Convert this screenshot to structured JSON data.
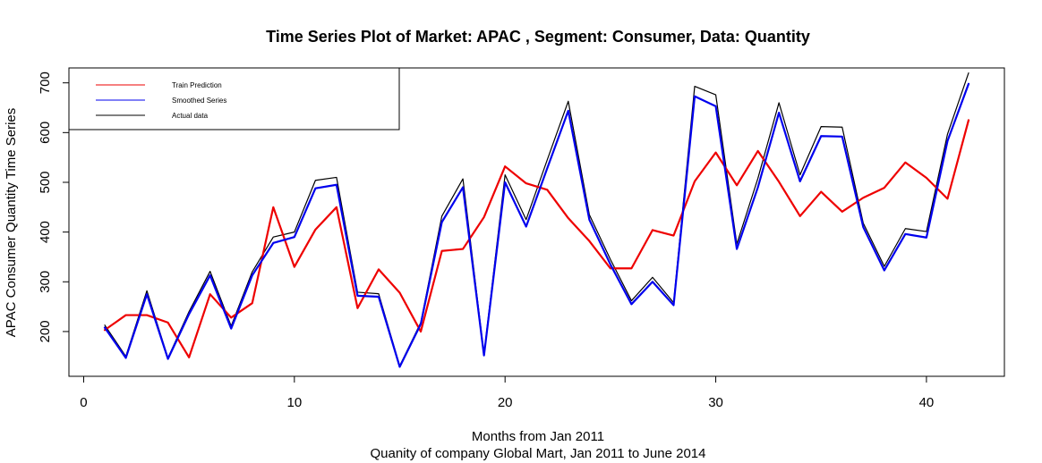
{
  "chart_data": {
    "type": "line",
    "title": "Time Series Plot of Market: APAC , Segment: Consumer, Data: Quantity",
    "xlabel": "Months from Jan 2011",
    "subtitle": "Quanity of company Global Mart, Jan 2011 to June 2014",
    "ylabel": "APAC Consumer Quantity Time Series",
    "xlim": [
      -0.7,
      43.7
    ],
    "ylim": [
      110,
      730
    ],
    "x_ticks": [
      0,
      10,
      20,
      30,
      40
    ],
    "y_ticks": [
      200,
      300,
      400,
      500,
      600,
      700
    ],
    "legend_position": "top-left",
    "x": [
      1,
      2,
      3,
      4,
      5,
      6,
      7,
      8,
      9,
      10,
      11,
      12,
      13,
      14,
      15,
      16,
      17,
      18,
      19,
      20,
      21,
      22,
      23,
      24,
      25,
      26,
      27,
      28,
      29,
      30,
      31,
      32,
      33,
      34,
      35,
      36,
      37,
      38,
      39,
      40,
      41,
      42
    ],
    "series": [
      {
        "name": "Train Prediction",
        "color": "#ee0000",
        "values": [
          203,
          233,
          233,
          218,
          148,
          275,
          228,
          257,
          450,
          330,
          405,
          450,
          247,
          325,
          278,
          200,
          362,
          366,
          430,
          532,
          498,
          485,
          428,
          382,
          327,
          327,
          404,
          393,
          502,
          560,
          494,
          563,
          501,
          432,
          481,
          441,
          469,
          489,
          540,
          509,
          467,
          625
        ]
      },
      {
        "name": "Smoothed Series",
        "color": "#0000ee",
        "values": [
          208,
          147,
          275,
          145,
          235,
          313,
          206,
          313,
          378,
          390,
          488,
          495,
          272,
          270,
          129,
          215,
          420,
          490,
          152,
          500,
          411,
          528,
          644,
          425,
          335,
          255,
          300,
          253,
          673,
          653,
          366,
          490,
          640,
          502,
          593,
          592,
          410,
          323,
          396,
          389,
          583,
          698
        ]
      },
      {
        "name": "Actual data",
        "color": "#000000",
        "values": [
          213,
          150,
          282,
          147,
          240,
          321,
          211,
          320,
          390,
          400,
          504,
          510,
          279,
          276,
          131,
          218,
          432,
          507,
          155,
          515,
          425,
          545,
          663,
          435,
          345,
          262,
          309,
          258,
          693,
          676,
          376,
          508,
          660,
          515,
          612,
          611,
          418,
          331,
          407,
          401,
          597,
          720
        ]
      }
    ]
  }
}
